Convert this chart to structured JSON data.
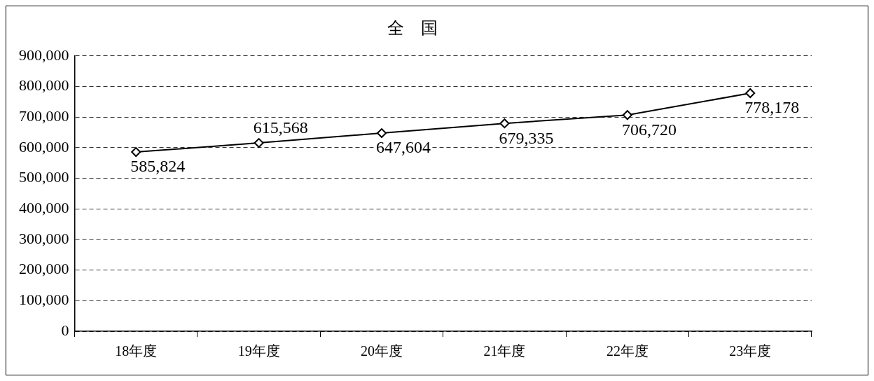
{
  "chart_data": {
    "type": "line",
    "title": "全　国",
    "categories": [
      "18年度",
      "19年度",
      "20年度",
      "21年度",
      "22年度",
      "23年度"
    ],
    "series": [
      {
        "color": "#000000",
        "values": [
          585824,
          615568,
          647604,
          679335,
          706720,
          778178
        ],
        "value_labels": [
          "585,824",
          "615,568",
          "647,604",
          "679,335",
          "706,720",
          "778,178"
        ]
      }
    ],
    "ylim": [
      0,
      900000
    ],
    "yticks": [
      0,
      {
        "value": 100000,
        "label": "100,000"
      },
      {
        "value": 200000,
        "label": "200,000"
      },
      {
        "value": 300000,
        "label": "300,000"
      },
      {
        "value": 400000,
        "label": "400,000"
      },
      {
        "value": 500000,
        "label": "500,000"
      },
      {
        "value": 600000,
        "label": "600,000"
      },
      {
        "value": 700000,
        "label": "700,000"
      },
      {
        "value": 800000,
        "label": "800,000"
      },
      {
        "value": 900000,
        "label": "900,000"
      }
    ],
    "grid": "y",
    "marker": "diamond",
    "line_style": "solid"
  }
}
